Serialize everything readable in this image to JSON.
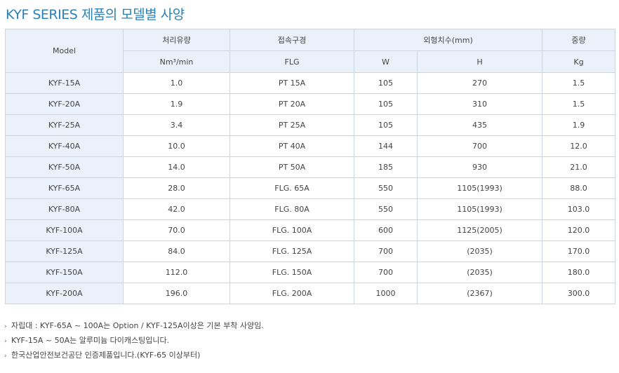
{
  "title": "KYF SERIES 제품의 모델별 사양",
  "table": {
    "header": {
      "model": "Model",
      "flow": "처리유량",
      "conn": "접속구경",
      "dims": "외형치수(mm)",
      "weight": "중량",
      "flow_unit": "Nm³/min",
      "conn_unit": "FLG",
      "w": "W",
      "h": "H",
      "weight_unit": "Kg"
    },
    "rows": [
      {
        "model": "KYF-15A",
        "flow": "1.0",
        "conn": "PT 15A",
        "w": "105",
        "h": "270",
        "kg": "1.5"
      },
      {
        "model": "KYF-20A",
        "flow": "1.9",
        "conn": "PT 20A",
        "w": "105",
        "h": "310",
        "kg": "1.5"
      },
      {
        "model": "KYF-25A",
        "flow": "3.4",
        "conn": "PT 25A",
        "w": "105",
        "h": "435",
        "kg": "1.9"
      },
      {
        "model": "KYF-40A",
        "flow": "10.0",
        "conn": "PT 40A",
        "w": "144",
        "h": "700",
        "kg": "12.0"
      },
      {
        "model": "KYF-50A",
        "flow": "14.0",
        "conn": "PT 50A",
        "w": "185",
        "h": "930",
        "kg": "21.0"
      },
      {
        "model": "KYF-65A",
        "flow": "28.0",
        "conn": "FLG. 65A",
        "w": "550",
        "h": "1105(1993)",
        "kg": "88.0"
      },
      {
        "model": "KYF-80A",
        "flow": "42.0",
        "conn": "FLG. 80A",
        "w": "550",
        "h": "1105(1993)",
        "kg": "103.0"
      },
      {
        "model": "KYF-100A",
        "flow": "70.0",
        "conn": "FLG. 100A",
        "w": "600",
        "h": "1125(2005)",
        "kg": "120.0"
      },
      {
        "model": "KYF-125A",
        "flow": "84.0",
        "conn": "FLG. 125A",
        "w": "700",
        "h": "(2035)",
        "kg": "170.0"
      },
      {
        "model": "KYF-150A",
        "flow": "112.0",
        "conn": "FLG. 150A",
        "w": "700",
        "h": "(2035)",
        "kg": "180.0"
      },
      {
        "model": "KYF-200A",
        "flow": "196.0",
        "conn": "FLG. 200A",
        "w": "1000",
        "h": "(2367)",
        "kg": "300.0"
      }
    ]
  },
  "notes": [
    "자립대 : KYF-65A ~ 100A는 Option / KYF-125A이상은 기본 부착 사양임.",
    "KYF-15A ~ 50A는 알루미늄 다이캐스팅입니다.",
    "한국산업안전보건공단 인증제품입니다.(KYF-65 이상부터)"
  ],
  "bullet_glyph": "›"
}
